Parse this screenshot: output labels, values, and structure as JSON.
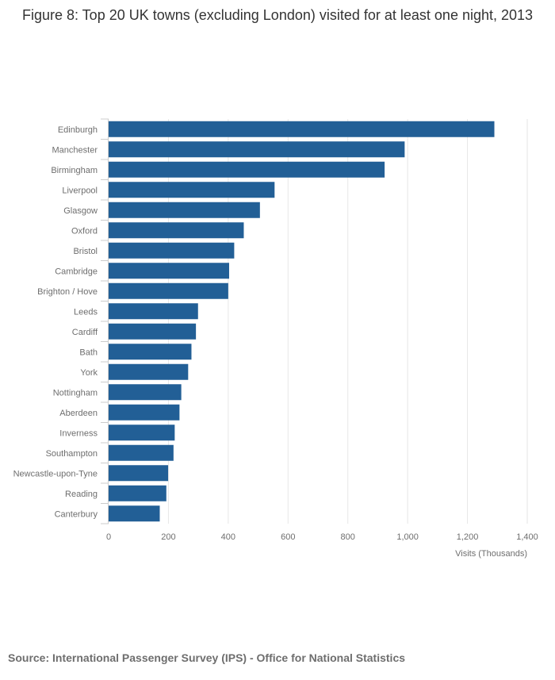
{
  "chart_data": {
    "type": "bar",
    "orientation": "horizontal",
    "title": "Figure 8: Top 20 UK towns (excluding London) visited for at least one night, 2013",
    "xlabel": "Visits (Thousands)",
    "ylabel": "",
    "xlim": [
      0,
      1400
    ],
    "xticks": [
      0,
      200,
      400,
      600,
      800,
      1000,
      1200,
      1400
    ],
    "xtick_labels": [
      "0",
      "200",
      "400",
      "600",
      "800",
      "1,000",
      "1,200",
      "1,400"
    ],
    "grid": true,
    "bar_color": "#225f96",
    "categories": [
      "Edinburgh",
      "Manchester",
      "Birmingham",
      "Liverpool",
      "Glasgow",
      "Oxford",
      "Bristol",
      "Cambridge",
      "Brighton / Hove",
      "Leeds",
      "Cardiff",
      "Bath",
      "York",
      "Nottingham",
      "Aberdeen",
      "Inverness",
      "Southampton",
      "Newcastle-upon-Tyne",
      "Reading",
      "Canterbury"
    ],
    "values": [
      1290,
      990,
      923,
      555,
      506,
      452,
      420,
      403,
      400,
      299,
      292,
      277,
      266,
      243,
      237,
      221,
      217,
      199,
      193,
      171
    ]
  },
  "source": "Source: International Passenger Survey (IPS) - Office for National Statistics"
}
